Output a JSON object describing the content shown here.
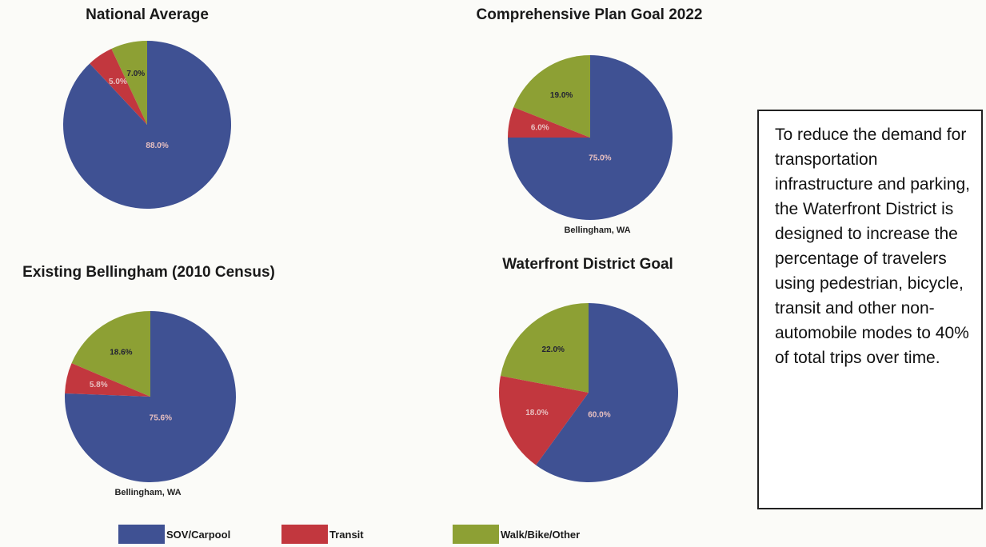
{
  "colors": {
    "sov": "#3f5193",
    "transit": "#c2373e",
    "walk": "#8da034"
  },
  "legend": [
    {
      "label": "SOV/Carpool",
      "color": "#3f5193"
    },
    {
      "label": "Transit",
      "color": "#c2373e"
    },
    {
      "label": "Walk/Bike/Other",
      "color": "#8da034"
    }
  ],
  "note": {
    "text": "To reduce the demand for transportation infrastructure and parking, the Waterfront District is designed to increase the percentage of travelers using pedestrian, bicycle, transit and other non-automobile modes to 40% of total trips over time."
  },
  "chart_data": [
    {
      "type": "pie",
      "title": "National Average",
      "subcaption": "",
      "slices": [
        {
          "name": "SOV/Carpool",
          "value": 88.0,
          "label": "88.0%"
        },
        {
          "name": "Transit",
          "value": 5.0,
          "label": "5.0%"
        },
        {
          "name": "Walk/Bike/Other",
          "value": 7.0,
          "label": "7.0%"
        }
      ]
    },
    {
      "type": "pie",
      "title": "Comprehensive Plan Goal 2022",
      "subcaption": "Bellingham, WA",
      "slices": [
        {
          "name": "SOV/Carpool",
          "value": 75.0,
          "label": "75.0%"
        },
        {
          "name": "Transit",
          "value": 6.0,
          "label": "6.0%"
        },
        {
          "name": "Walk/Bike/Other",
          "value": 19.0,
          "label": "19.0%"
        }
      ]
    },
    {
      "type": "pie",
      "title": "Existing Bellingham (2010 Census)",
      "subcaption": "Bellingham, WA",
      "slices": [
        {
          "name": "SOV/Carpool",
          "value": 75.6,
          "label": "75.6%"
        },
        {
          "name": "Transit",
          "value": 5.8,
          "label": "5.8%"
        },
        {
          "name": "Walk/Bike/Other",
          "value": 18.6,
          "label": "18.6%"
        }
      ]
    },
    {
      "type": "pie",
      "title": "Waterfront District Goal",
      "subcaption": "",
      "slices": [
        {
          "name": "SOV/Carpool",
          "value": 60.0,
          "label": "60.0%"
        },
        {
          "name": "Transit",
          "value": 18.0,
          "label": "18.0%"
        },
        {
          "name": "Walk/Bike/Other",
          "value": 22.0,
          "label": "22.0%"
        }
      ]
    }
  ]
}
